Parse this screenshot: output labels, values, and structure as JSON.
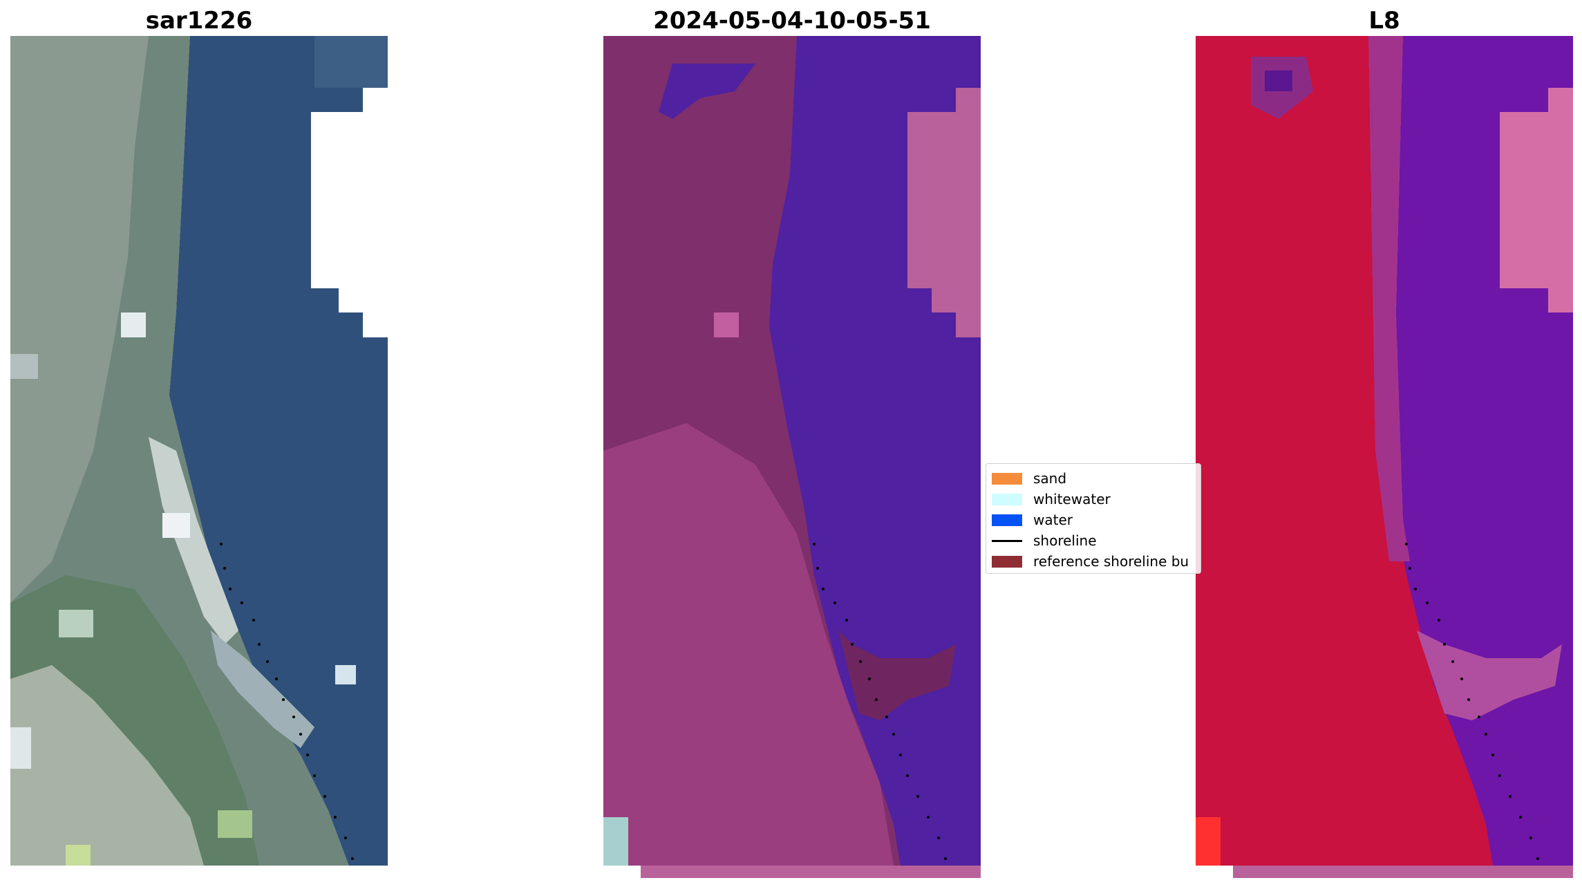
{
  "panels": [
    {
      "title": "sar1226"
    },
    {
      "title": "2024-05-04-10-05-51"
    },
    {
      "title": "L8"
    }
  ],
  "legend": {
    "items": [
      {
        "label": "sand",
        "color": "#f48c3c",
        "kind": "patch"
      },
      {
        "label": "whitewater",
        "color": "#cffcff",
        "kind": "patch"
      },
      {
        "label": "water",
        "color": "#0553f5",
        "kind": "patch"
      },
      {
        "label": "shoreline",
        "color": "#000000",
        "kind": "line"
      },
      {
        "label": "reference shoreline bu",
        "color": "#8f2d34",
        "kind": "patch"
      }
    ]
  }
}
